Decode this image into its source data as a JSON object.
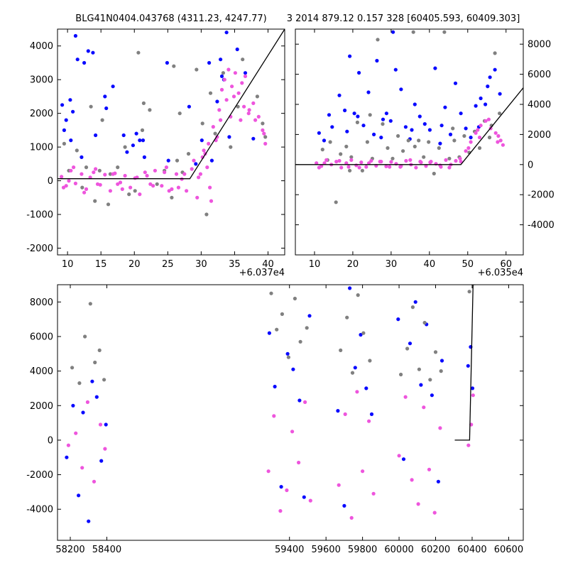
{
  "colors": {
    "grey": "#808080",
    "blue": "#0a0aff",
    "magenta": "#ee55dd",
    "model": "#000000"
  },
  "chart_data": [
    {
      "type": "scatter",
      "title": "BLG41N0404.043768 (4311.23, 4247.77)",
      "xlabel": "",
      "ylabel": "",
      "x_offset_label": "+6.037e4",
      "xlim": [
        8.5,
        42.5
      ],
      "ylim": [
        -2200,
        4500
      ],
      "xticks": [
        10,
        15,
        20,
        25,
        30,
        35,
        40
      ],
      "yticks": [
        -2000,
        -1000,
        0,
        1000,
        2000,
        3000,
        4000
      ],
      "grid": false,
      "model_line": {
        "x": [
          8.5,
          28.3,
          42.5
        ],
        "y": [
          60,
          60,
          4500
        ]
      },
      "series": [
        {
          "color": "blue",
          "x": [
            9.2,
            9.5,
            9.8,
            10.4,
            10.8,
            11.2,
            12.5,
            13.1,
            14.2,
            15.6,
            15.8,
            18.4,
            18.9,
            19.8,
            20.3,
            21.3,
            21.5,
            24.9,
            28.2,
            29.2,
            30.1,
            31.6,
            32.4,
            32.9,
            33.1,
            33.8,
            34.2,
            35.4,
            36.6,
            37.8,
            10.5,
            13.8,
            16.8,
            20.8,
            25.1,
            31.2,
            33.4,
            12.1,
            11.5
          ],
          "y": [
            2250,
            1500,
            1800,
            2400,
            2050,
            4300,
            3500,
            3850,
            1350,
            2500,
            2150,
            1350,
            850,
            1050,
            1400,
            1200,
            700,
            3500,
            2200,
            500,
            1200,
            600,
            2350,
            3600,
            3100,
            4400,
            1300,
            3900,
            3200,
            1250,
            1200,
            3800,
            2800,
            1200,
            600,
            3500,
            3000,
            700,
            3600
          ]
        },
        {
          "color": "grey",
          "x": [
            9.5,
            10.2,
            11.4,
            12.2,
            13.5,
            14.1,
            15.2,
            16.4,
            17.5,
            18.6,
            20.1,
            21.2,
            22.3,
            23.4,
            24.5,
            25.6,
            26.4,
            27.2,
            28.1,
            29.3,
            30.2,
            31.4,
            32.1,
            33.3,
            34.4,
            35.5,
            36.2,
            38.4,
            39.2,
            39.6,
            12.8,
            14.8,
            20.6,
            26.8,
            21.4,
            25.9,
            30.8,
            16.1,
            19.2
          ],
          "y": [
            1100,
            300,
            900,
            -200,
            2200,
            -600,
            1800,
            200,
            400,
            1000,
            -300,
            1500,
            2100,
            -100,
            300,
            -500,
            600,
            250,
            800,
            3300,
            1700,
            2600,
            1400,
            3200,
            1000,
            2200,
            3600,
            2500,
            1700,
            1300,
            400,
            300,
            3800,
            2000,
            2300,
            3400,
            -1000,
            -700,
            -400
          ]
        },
        {
          "color": "magenta",
          "x": [
            9.1,
            9.8,
            10.5,
            11.2,
            12.1,
            12.8,
            13.4,
            14.2,
            14.9,
            15.6,
            16.4,
            17.1,
            17.9,
            18.6,
            19.4,
            20.1,
            20.8,
            21.6,
            22.4,
            23.1,
            24.1,
            24.8,
            25.6,
            26.3,
            27.1,
            27.8,
            28.6,
            29.4,
            29.9,
            30.4,
            30.9,
            31.3,
            31.8,
            32.2,
            32.7,
            33.1,
            33.5,
            34.1,
            34.6,
            35.1,
            35.6,
            36.1,
            36.6,
            37.2,
            37.8,
            38.6,
            39.2,
            39.6,
            9.4,
            10.9,
            12.5,
            14.5,
            16.8,
            18.2,
            20.4,
            22.8,
            24.5,
            26.6,
            28.9,
            29.6,
            30.6,
            31.5,
            32.4,
            33.8,
            34.9,
            35.9,
            37.1,
            38.1,
            39.4,
            10.2,
            13.9,
            17.5,
            21.9,
            25.2,
            27.5,
            30.2,
            31.1,
            32.9,
            34.4,
            36.4
          ],
          "y": [
            120,
            -150,
            300,
            -80,
            200,
            -250,
            100,
            350,
            -120,
            180,
            -300,
            220,
            -50,
            150,
            -200,
            80,
            -400,
            250,
            -100,
            300,
            -150,
            400,
            -250,
            200,
            50,
            -300,
            350,
            -500,
            200,
            900,
            400,
            -200,
            1600,
            1200,
            2100,
            2700,
            3000,
            3300,
            2800,
            3200,
            2600,
            2900,
            3100,
            2100,
            2300,
            1900,
            1500,
            1100,
            -200,
            400,
            -350,
            -100,
            200,
            -250,
            100,
            -150,
            250,
            -200,
            600,
            100,
            800,
            -600,
            1300,
            2400,
            2500,
            1800,
            2000,
            1800,
            1400,
            0,
            250,
            -100,
            150,
            -300,
            200,
            700,
            1100,
            1800,
            1900,
            2200
          ]
        }
      ]
    },
    {
      "type": "scatter",
      "title": "3 2014 879.12 0.157 328 [60405.593, 60409.303]",
      "xlabel": "",
      "ylabel": "",
      "x_offset_label": "+6.035e4",
      "xlim": [
        5,
        64.5
      ],
      "ylim": [
        -6000,
        9000
      ],
      "xticks": [
        10,
        20,
        30,
        40,
        50,
        60
      ],
      "yticks": [
        -4000,
        -2000,
        0,
        2000,
        4000,
        6000,
        8000
      ],
      "yaxis_side": "right",
      "grid": false,
      "model_line": {
        "x": [
          5,
          48.2,
          64.5
        ],
        "y": [
          0,
          0,
          5100
        ]
      },
      "series": [
        {
          "color": "blue",
          "x": [
            11.2,
            12.5,
            13.8,
            14.6,
            16.5,
            17.9,
            19.2,
            20.4,
            21.6,
            22.8,
            24.1,
            25.5,
            26.3,
            27.4,
            28.8,
            29.9,
            31.2,
            32.6,
            33.8,
            34.9,
            36.2,
            37.5,
            38.8,
            40.1,
            41.5,
            42.8,
            44.1,
            45.5,
            46.8,
            48.2,
            49.5,
            50.8,
            52.1,
            53.4,
            54.6,
            55.8,
            57.1,
            58.4,
            18.5,
            27.9,
            35.4,
            43.2,
            52.9,
            55.2,
            30.5,
            21.3
          ],
          "y": [
            2100,
            1600,
            3300,
            2500,
            4600,
            3600,
            7200,
            3400,
            6100,
            2600,
            4800,
            2000,
            6900,
            1800,
            3400,
            2900,
            6300,
            5000,
            2500,
            1700,
            4000,
            3200,
            2700,
            2300,
            6400,
            1400,
            3800,
            2000,
            5400,
            3400,
            2400,
            1800,
            3900,
            4400,
            4000,
            5800,
            6300,
            4700,
            2200,
            3000,
            2300,
            2600,
            2500,
            5200,
            8800,
            3200
          ]
        },
        {
          "color": "grey",
          "x": [
            12.1,
            13.4,
            15.6,
            16.8,
            18.3,
            19.6,
            21.2,
            22.5,
            23.8,
            25.1,
            26.5,
            27.8,
            29.1,
            30.4,
            31.8,
            33.1,
            34.5,
            35.8,
            37.2,
            38.5,
            39.8,
            41.2,
            42.5,
            43.9,
            45.2,
            46.5,
            47.8,
            49.1,
            50.4,
            51.8,
            53.1,
            54.4,
            55.7,
            57.1,
            58.3,
            14.1,
            24.5,
            36.2,
            46.1,
            56.2,
            19.2
          ],
          "y": [
            1000,
            300,
            -2500,
            700,
            1200,
            500,
            2800,
            -400,
            1500,
            400,
            8300,
            2700,
            1100,
            400,
            1900,
            900,
            1600,
            8800,
            1600,
            500,
            1500,
            -600,
            1100,
            8800,
            400,
            1600,
            500,
            1900,
            800,
            2200,
            1100,
            2900,
            1800,
            7400,
            3400,
            1500,
            3300,
            1200,
            2400,
            2600,
            -400
          ]
        },
        {
          "color": "magenta",
          "x": [
            10.5,
            11.8,
            13.1,
            14.4,
            15.7,
            17.0,
            18.3,
            19.6,
            20.9,
            22.2,
            23.5,
            24.8,
            26.1,
            27.4,
            28.7,
            30.0,
            31.3,
            32.6,
            33.9,
            35.2,
            36.5,
            37.8,
            39.1,
            40.4,
            41.7,
            43.0,
            44.3,
            45.6,
            46.9,
            48.2,
            49.5,
            50.8,
            52.1,
            53.4,
            54.7,
            56.0,
            57.3,
            58.6,
            59.2,
            11.2,
            16.5,
            21.7,
            27.1,
            32.4,
            37.6,
            42.8,
            48.0,
            53.1,
            55.5,
            58.0,
            12.6,
            18.9,
            24.2,
            29.6,
            35.0,
            40.2,
            45.2,
            50.2,
            52.6,
            57.8
          ],
          "y": [
            100,
            -100,
            300,
            0,
            200,
            -200,
            100,
            300,
            -50,
            150,
            -150,
            250,
            -80,
            200,
            -120,
            180,
            50,
            -100,
            250,
            0,
            -200,
            150,
            -100,
            200,
            50,
            -150,
            300,
            0,
            250,
            200,
            900,
            1500,
            2100,
            2600,
            2900,
            2400,
            2100,
            1600,
            1300,
            -200,
            250,
            -200,
            200,
            -150,
            200,
            -50,
            400,
            1800,
            3000,
            1900,
            100,
            -150,
            100,
            -150,
            300,
            150,
            -200,
            1100,
            2300,
            1500
          ]
        }
      ]
    },
    {
      "type": "scatter",
      "title": "",
      "xlabel": "",
      "ylabel": "",
      "xlim": [
        58130,
        60680
      ],
      "ylim": [
        -5800,
        9000
      ],
      "xticks": [
        58200,
        58400,
        59400,
        59600,
        59800,
        60000,
        60200,
        60400,
        60600
      ],
      "yticks": [
        -4000,
        -2000,
        0,
        2000,
        4000,
        6000,
        8000
      ],
      "grid": false,
      "model_line": {
        "x": [
          60305,
          60386,
          60405,
          60417
        ],
        "y": [
          0,
          0,
          9000,
          9000
        ]
      },
      "season_ranges": [
        [
          58170,
          58400
        ],
        [
          59270,
          59520
        ],
        [
          59650,
          59880
        ],
        [
          59980,
          60240
        ],
        [
          60362,
          60418
        ]
      ],
      "series": [
        {
          "color": "blue",
          "x": [
            58180,
            58215,
            58245,
            58270,
            58300,
            58320,
            58345,
            58370,
            58395,
            59290,
            59320,
            59355,
            59390,
            59420,
            59455,
            59480,
            59510,
            59665,
            59700,
            59730,
            59760,
            59790,
            59820,
            59850,
            59995,
            60025,
            60060,
            60090,
            60120,
            60150,
            60180,
            60215,
            60235,
            60378,
            60392,
            60402
          ],
          "y": [
            -1000,
            2000,
            -3200,
            1600,
            -4700,
            3400,
            2500,
            -1200,
            900,
            6200,
            3100,
            -2700,
            5000,
            4100,
            2300,
            -3300,
            7200,
            1700,
            -3800,
            8800,
            4200,
            6100,
            3000,
            1500,
            7000,
            -1100,
            5600,
            8000,
            3200,
            6700,
            2600,
            -2400,
            4600,
            4300,
            5400,
            3000
          ]
        },
        {
          "color": "grey",
          "x": [
            58210,
            58250,
            58280,
            58310,
            58335,
            58360,
            58385,
            59300,
            59330,
            59360,
            59395,
            59430,
            59460,
            59495,
            59680,
            59715,
            59745,
            59775,
            59805,
            59840,
            60010,
            60045,
            60075,
            60110,
            60140,
            60170,
            60200,
            60230,
            60385
          ],
          "y": [
            4200,
            3300,
            6000,
            7900,
            4500,
            5200,
            3500,
            8500,
            6400,
            7300,
            4800,
            8200,
            5700,
            6500,
            5200,
            7100,
            3900,
            8400,
            6200,
            4600,
            3800,
            5300,
            7700,
            4100,
            6800,
            3500,
            5100,
            4000,
            8600
          ]
        },
        {
          "color": "magenta",
          "x": [
            58190,
            58230,
            58265,
            58295,
            58330,
            58365,
            58390,
            59285,
            59315,
            59350,
            59385,
            59415,
            59450,
            59485,
            59515,
            59670,
            59705,
            59740,
            59770,
            59800,
            59835,
            59860,
            60000,
            60035,
            60070,
            60105,
            60135,
            60165,
            60195,
            60225,
            60380,
            60395,
            60405
          ],
          "y": [
            -300,
            400,
            -1600,
            2200,
            -2400,
            900,
            -500,
            -1800,
            1400,
            -4100,
            -2900,
            500,
            -1300,
            2200,
            -3500,
            -2600,
            1500,
            -4500,
            2800,
            -1800,
            1100,
            -3100,
            -900,
            2500,
            -2300,
            -3700,
            1900,
            -1700,
            -4200,
            700,
            -300,
            900,
            2600
          ]
        }
      ]
    }
  ]
}
